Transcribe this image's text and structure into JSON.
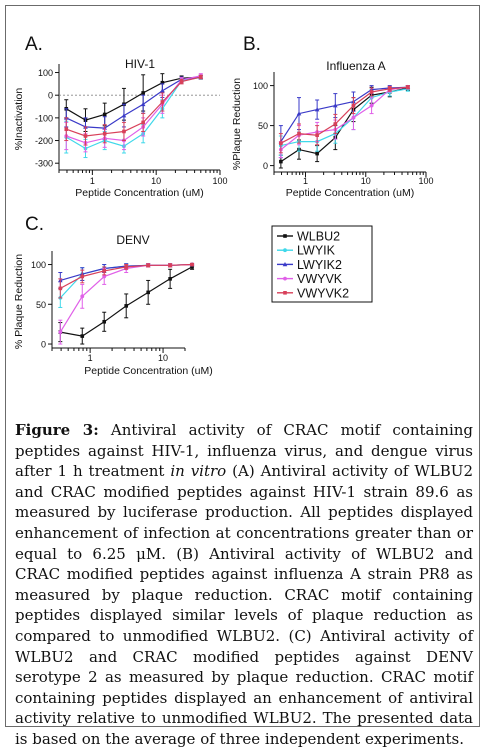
{
  "caption": {
    "label": "Figure 3:",
    "part1": " Antiviral activity of CRAC motif containing peptides against HIV-1, influenza virus, and dengue virus after 1 h treatment ",
    "italic": "in vitro",
    "part2": " (A) Antiviral activity of WLBU2 and CRAC modified peptides against HIV-1 strain 89.6 as measured by luciferase production. All peptides displayed enhancement of infection at concentrations greater than or equal to 6.25 μM. (B) Antiviral activity of WLBU2 and CRAC modified peptides against influenza A strain PR8 as measured by plaque reduction. CRAC motif containing peptides displayed similar levels of plaque reduction as compared to unmodified WLBU2. (C) Antiviral activity of WLBU2 and CRAC modified peptides against DENV serotype 2 as measured by plaque reduction. CRAC motif containing peptides displayed an enhancement of antiviral activity relative to unmodified WLBU2. The presented data is based on the average of three independent experiments."
  },
  "legend": [
    {
      "name": "WLBU2",
      "color": "#111111"
    },
    {
      "name": "LWYIK",
      "color": "#3fd8ea"
    },
    {
      "name": "LWYIK2",
      "color": "#3a3ac8"
    },
    {
      "name": "VWYVK",
      "color": "#e060e8"
    },
    {
      "name": "VWYVK2",
      "color": "#d8405a"
    }
  ],
  "chart_data": [
    {
      "type": "line",
      "panel_label": "A.",
      "title": "HIV-1",
      "xlabel": "Peptide Concentration (uM)",
      "ylabel": "%Inactivation",
      "x_scale": "log",
      "xlim": [
        0.3,
        100
      ],
      "ylim": [
        -330,
        120
      ],
      "xticks": [
        {
          "v": 1,
          "label": "1"
        },
        {
          "v": 10,
          "label": "10"
        },
        {
          "v": 100,
          "label": "100"
        }
      ],
      "yticks": [
        100,
        0,
        -100,
        -200,
        -300
      ],
      "reference_line": 0,
      "x": [
        0.39,
        0.78,
        1.56,
        3.125,
        6.25,
        12.5,
        25,
        50
      ],
      "series": [
        {
          "values": [
            -60,
            -110,
            -85,
            -40,
            10,
            55,
            75,
            80
          ],
          "errors": [
            40,
            50,
            50,
            70,
            80,
            40,
            10,
            8
          ]
        },
        {
          "values": [
            -185,
            -235,
            -200,
            -225,
            -170,
            -60,
            65,
            78
          ],
          "errors": [
            70,
            40,
            40,
            30,
            40,
            40,
            10,
            8
          ]
        },
        {
          "values": [
            -100,
            -140,
            -145,
            -90,
            -40,
            20,
            70,
            80
          ],
          "errors": [
            40,
            40,
            50,
            50,
            40,
            30,
            10,
            8
          ]
        },
        {
          "values": [
            -180,
            -210,
            -190,
            -200,
            -140,
            -40,
            68,
            85
          ],
          "errors": [
            60,
            40,
            40,
            40,
            40,
            40,
            10,
            10
          ]
        },
        {
          "values": [
            -150,
            -180,
            -170,
            -160,
            -120,
            -30,
            60,
            80
          ],
          "errors": [
            50,
            40,
            40,
            40,
            40,
            40,
            10,
            8
          ]
        }
      ]
    },
    {
      "type": "line",
      "panel_label": "B.",
      "title": "Influenza A",
      "xlabel": "Peptide Concentration (uM)",
      "ylabel": "%Plaque Reduction",
      "x_scale": "log",
      "xlim": [
        0.3,
        100
      ],
      "ylim": [
        -8,
        112
      ],
      "xticks": [
        {
          "v": 1,
          "label": "1"
        },
        {
          "v": 10,
          "label": "10"
        },
        {
          "v": 100,
          "label": "100"
        }
      ],
      "yticks": [
        100,
        50,
        0
      ],
      "x": [
        0.39,
        0.78,
        1.56,
        3.125,
        6.25,
        12.5,
        25,
        50
      ],
      "series": [
        {
          "values": [
            5,
            20,
            15,
            35,
            70,
            88,
            92,
            97
          ],
          "errors": [
            8,
            12,
            10,
            15,
            15,
            10,
            6,
            3
          ]
        },
        {
          "values": [
            25,
            30,
            30,
            40,
            60,
            85,
            92,
            96
          ],
          "errors": [
            12,
            12,
            12,
            12,
            15,
            10,
            5,
            3
          ]
        },
        {
          "values": [
            30,
            65,
            70,
            75,
            80,
            95,
            97,
            98
          ],
          "errors": [
            20,
            20,
            12,
            15,
            12,
            5,
            3,
            2
          ]
        },
        {
          "values": [
            20,
            38,
            42,
            45,
            60,
            75,
            95,
            98
          ],
          "errors": [
            10,
            12,
            12,
            12,
            15,
            10,
            3,
            2
          ]
        },
        {
          "values": [
            28,
            40,
            38,
            52,
            75,
            92,
            96,
            98
          ],
          "errors": [
            12,
            12,
            12,
            12,
            10,
            5,
            3,
            2
          ]
        }
      ]
    },
    {
      "type": "line",
      "panel_label": "C.",
      "title": "DENV",
      "xlabel": "Peptide Concentration (uM)",
      "ylabel": "% Plaque Reduction",
      "x_scale": "log",
      "xlim": [
        0.3,
        20
      ],
      "ylim": [
        -5,
        112
      ],
      "xticks": [
        {
          "v": 1,
          "label": "1"
        },
        {
          "v": 10,
          "label": "10"
        }
      ],
      "yticks": [
        100,
        50,
        0
      ],
      "x": [
        0.39,
        0.78,
        1.56,
        3.125,
        6.25,
        12.5,
        25
      ],
      "series": [
        {
          "values": [
            15,
            10,
            28,
            48,
            65,
            82,
            97
          ],
          "errors": [
            12,
            10,
            12,
            15,
            15,
            12,
            3
          ]
        },
        {
          "values": [
            58,
            88,
            95,
            98,
            99,
            99,
            100
          ],
          "errors": [
            12,
            8,
            5,
            3,
            2,
            2,
            1
          ]
        },
        {
          "values": [
            80,
            88,
            95,
            98,
            99,
            99,
            100
          ],
          "errors": [
            10,
            8,
            5,
            3,
            2,
            2,
            1
          ]
        },
        {
          "values": [
            15,
            60,
            85,
            95,
            99,
            99,
            100
          ],
          "errors": [
            15,
            15,
            10,
            5,
            2,
            2,
            1
          ]
        },
        {
          "values": [
            70,
            85,
            92,
            97,
            99,
            99,
            100
          ],
          "errors": [
            12,
            8,
            5,
            3,
            2,
            2,
            1
          ]
        }
      ]
    }
  ]
}
